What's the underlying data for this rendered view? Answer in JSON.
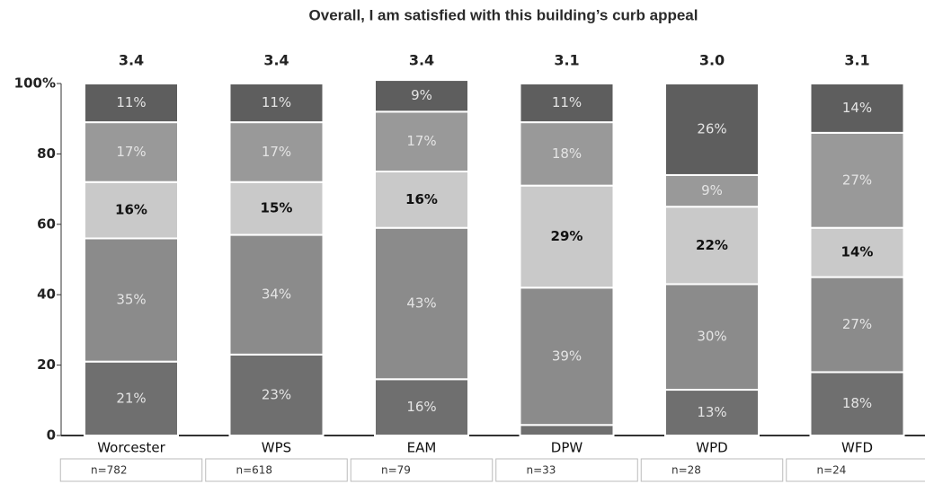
{
  "chart_data": {
    "type": "stacked_bar",
    "title": "Overall, I am satisfied with this building’s curb appeal",
    "categories": [
      "Worcester",
      "WPS",
      "EAM",
      "DPW",
      "WPD",
      "WFD"
    ],
    "mean_labels": [
      "3.4",
      "3.4",
      "3.4",
      "3.1",
      "3.0",
      "3.1"
    ],
    "sample_sizes": [
      "n=782",
      "n=618",
      "n=79",
      "n=33",
      "n=28",
      "n=24"
    ],
    "series": [
      {
        "color": "#6f6f6f",
        "values": [
          21,
          23,
          16,
          3,
          13,
          18
        ],
        "value_labels": [
          "21%",
          "23%",
          "16%",
          null,
          "13%",
          "18%"
        ]
      },
      {
        "color": "#8b8b8b",
        "values": [
          35,
          34,
          43,
          39,
          30,
          27
        ],
        "value_labels": [
          "35%",
          "34%",
          "43%",
          "39%",
          "30%",
          "27%"
        ]
      },
      {
        "color": "#c9c9c9",
        "values": [
          16,
          15,
          16,
          29,
          22,
          14
        ],
        "value_labels": [
          "16%",
          "15%",
          "16%",
          "29%",
          "22%",
          "14%"
        ]
      },
      {
        "color": "#999999",
        "values": [
          17,
          17,
          17,
          18,
          9,
          27
        ],
        "value_labels": [
          "17%",
          "17%",
          "17%",
          "18%",
          "9%",
          "27%"
        ]
      },
      {
        "color": "#5e5e5e",
        "values": [
          11,
          11,
          9,
          11,
          26,
          14
        ],
        "value_labels": [
          "11%",
          "11%",
          "9%",
          "11%",
          "26%",
          "14%"
        ]
      }
    ],
    "ylim": [
      0,
      100
    ],
    "yticks": [
      0,
      20,
      40,
      60,
      80,
      {
        "value": 100,
        "label": "100%"
      }
    ]
  }
}
